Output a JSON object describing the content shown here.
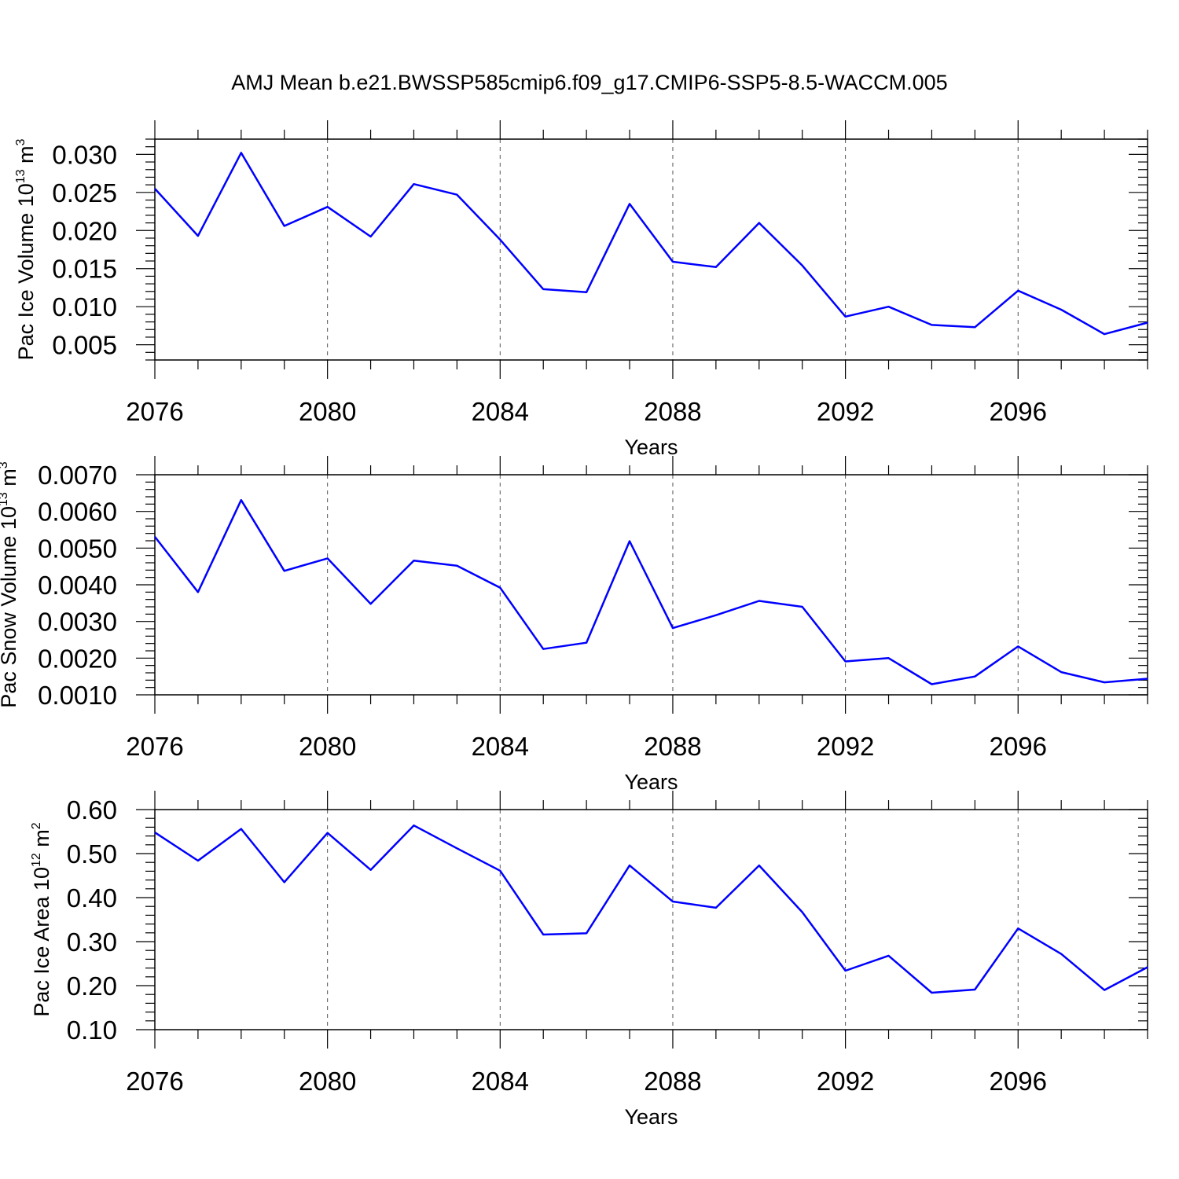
{
  "title": "AMJ Mean b.e21.BWSSP585cmip6.f09_g17.CMIP6-SSP5-8.5-WACCM.005",
  "colors": {
    "line": "#0000ff",
    "axis": "#000000",
    "grid": "#555555"
  },
  "chart_data": [
    {
      "type": "line",
      "title": "",
      "xlabel": "Years",
      "ylabel": {
        "prefix": "Pac Ice Volume 10",
        "exp": "13",
        "unit": " m",
        "unit_exp": "3"
      },
      "xlim": [
        2076,
        2099
      ],
      "ylim": [
        0.003,
        0.032
      ],
      "x_ticks": [
        2076,
        2080,
        2084,
        2088,
        2092,
        2096
      ],
      "x_tick_labels": [
        "2076",
        "2080",
        "2084",
        "2088",
        "2092",
        "2096"
      ],
      "y_ticks": [
        0.005,
        0.01,
        0.015,
        0.02,
        0.025,
        0.03
      ],
      "y_tick_labels": [
        "0.005",
        "0.010",
        "0.015",
        "0.020",
        "0.025",
        "0.030"
      ],
      "grid": "vertical dashed at labeled years",
      "x": [
        2076,
        2077,
        2078,
        2079,
        2080,
        2081,
        2082,
        2083,
        2084,
        2085,
        2086,
        2087,
        2088,
        2089,
        2090,
        2091,
        2092,
        2093,
        2094,
        2095,
        2096,
        2097,
        2098,
        2099
      ],
      "series": [
        {
          "values": [
            0.0255,
            0.0193,
            0.0302,
            0.0206,
            0.0231,
            0.0192,
            0.0261,
            0.0247,
            0.0188,
            0.0123,
            0.0119,
            0.0235,
            0.0159,
            0.0152,
            0.021,
            0.0154,
            0.0087,
            0.01,
            0.0076,
            0.0073,
            0.0121,
            0.0096,
            0.0064,
            0.0079
          ]
        }
      ]
    },
    {
      "type": "line",
      "title": "",
      "xlabel": "Years",
      "ylabel": {
        "prefix": "Pac Snow Volume 10",
        "exp": "13",
        "unit": " m",
        "unit_exp": "3"
      },
      "xlim": [
        2076,
        2099
      ],
      "ylim": [
        0.001,
        0.007
      ],
      "x_ticks": [
        2076,
        2080,
        2084,
        2088,
        2092,
        2096
      ],
      "x_tick_labels": [
        "2076",
        "2080",
        "2084",
        "2088",
        "2092",
        "2096"
      ],
      "y_ticks": [
        0.001,
        0.002,
        0.003,
        0.004,
        0.005,
        0.006,
        0.007
      ],
      "y_tick_labels": [
        "0.0010",
        "0.0020",
        "0.0030",
        "0.0040",
        "0.0050",
        "0.0060",
        "0.0070"
      ],
      "grid": "vertical dashed at labeled years",
      "x": [
        2076,
        2077,
        2078,
        2079,
        2080,
        2081,
        2082,
        2083,
        2084,
        2085,
        2086,
        2087,
        2088,
        2089,
        2090,
        2091,
        2092,
        2093,
        2094,
        2095,
        2096,
        2097,
        2098,
        2099
      ],
      "series": [
        {
          "values": [
            0.00531,
            0.0038,
            0.00631,
            0.00438,
            0.00472,
            0.00348,
            0.00466,
            0.00452,
            0.00392,
            0.00225,
            0.00242,
            0.00519,
            0.00282,
            0.00317,
            0.00356,
            0.0034,
            0.00191,
            0.002,
            0.00129,
            0.0015,
            0.00232,
            0.00162,
            0.00134,
            0.00144
          ]
        }
      ]
    },
    {
      "type": "line",
      "title": "",
      "xlabel": "Years",
      "ylabel": {
        "prefix": "Pac Ice Area 10",
        "exp": "12",
        "unit": " m",
        "unit_exp": "2"
      },
      "xlim": [
        2076,
        2099
      ],
      "ylim": [
        0.1,
        0.6
      ],
      "x_ticks": [
        2076,
        2080,
        2084,
        2088,
        2092,
        2096
      ],
      "x_tick_labels": [
        "2076",
        "2080",
        "2084",
        "2088",
        "2092",
        "2096"
      ],
      "y_ticks": [
        0.1,
        0.2,
        0.3,
        0.4,
        0.5,
        0.6
      ],
      "y_tick_labels": [
        "0.10",
        "0.20",
        "0.30",
        "0.40",
        "0.50",
        "0.60"
      ],
      "grid": "vertical dashed at labeled years",
      "x": [
        2076,
        2077,
        2078,
        2079,
        2080,
        2081,
        2082,
        2083,
        2084,
        2085,
        2086,
        2087,
        2088,
        2089,
        2090,
        2091,
        2092,
        2093,
        2094,
        2095,
        2096,
        2097,
        2098,
        2099
      ],
      "series": [
        {
          "values": [
            0.548,
            0.484,
            0.556,
            0.435,
            0.547,
            0.463,
            0.564,
            0.512,
            0.461,
            0.316,
            0.319,
            0.473,
            0.391,
            0.377,
            0.473,
            0.367,
            0.234,
            0.268,
            0.184,
            0.191,
            0.33,
            0.272,
            0.19,
            0.242
          ]
        }
      ]
    }
  ]
}
